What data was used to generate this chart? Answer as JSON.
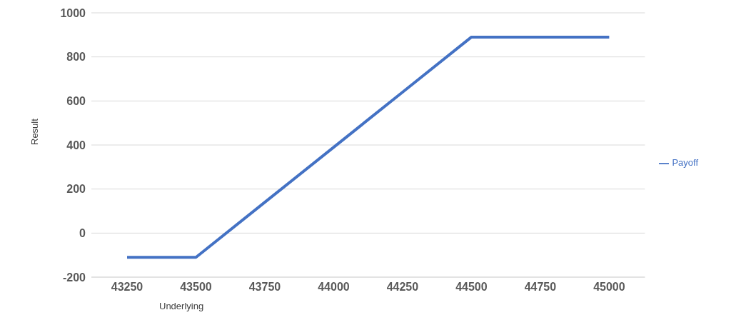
{
  "chart_data": {
    "type": "line",
    "xlabel": "Underlying",
    "ylabel": "Result",
    "categories": [
      "43250",
      "43500",
      "43750",
      "44000",
      "44250",
      "44500",
      "44750",
      "45000"
    ],
    "series": [
      {
        "name": "Payoff",
        "color": "#4472c4",
        "values": [
          -110,
          -110,
          140,
          390,
          640,
          890,
          890,
          890
        ]
      }
    ],
    "ylim": [
      -200,
      1000
    ],
    "yticks": [
      -200,
      0,
      200,
      400,
      600,
      800,
      1000
    ],
    "grid": "y",
    "legend": "right",
    "marker": "none",
    "line_style": "solid"
  }
}
